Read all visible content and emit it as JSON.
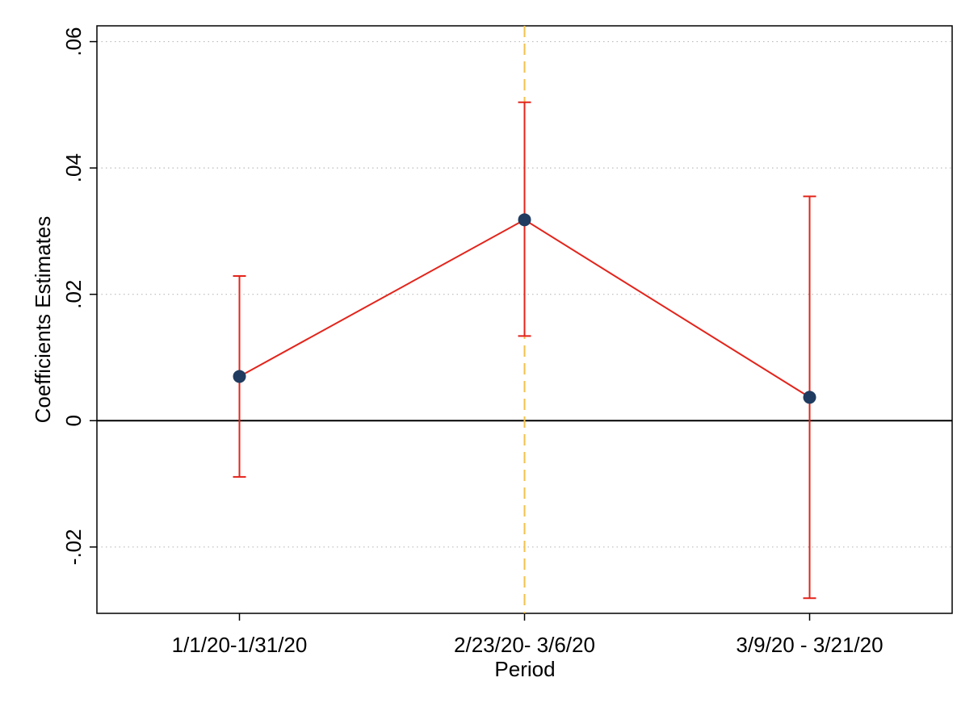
{
  "chart_data": {
    "type": "errorbar-line",
    "x_label": "Period",
    "y_label": "Coefficients Estimates",
    "categories": [
      "1/1/20-1/31/20",
      "2/23/20- 3/6/20",
      "3/9/20 - 3/21/20"
    ],
    "values": [
      0.007,
      0.0318,
      0.0037
    ],
    "lower": [
      -0.0089,
      0.0134,
      -0.0281
    ],
    "upper": [
      0.0229,
      0.0504,
      0.0355
    ],
    "color": "#e3241b",
    "marker_color": "#1f3b5f",
    "ylim": [
      -0.0305,
      0.0625
    ],
    "yticks": [
      {
        "value": -0.02,
        "label": "-.02"
      },
      0,
      {
        "value": 0.02,
        "label": ".02"
      },
      {
        "value": 0.04,
        "label": ".04"
      },
      {
        "value": 0.06,
        "label": ".06"
      }
    ],
    "grid": true,
    "hline": 0,
    "reference_line": {
      "category": 1,
      "color": "#f2c14e"
    }
  }
}
